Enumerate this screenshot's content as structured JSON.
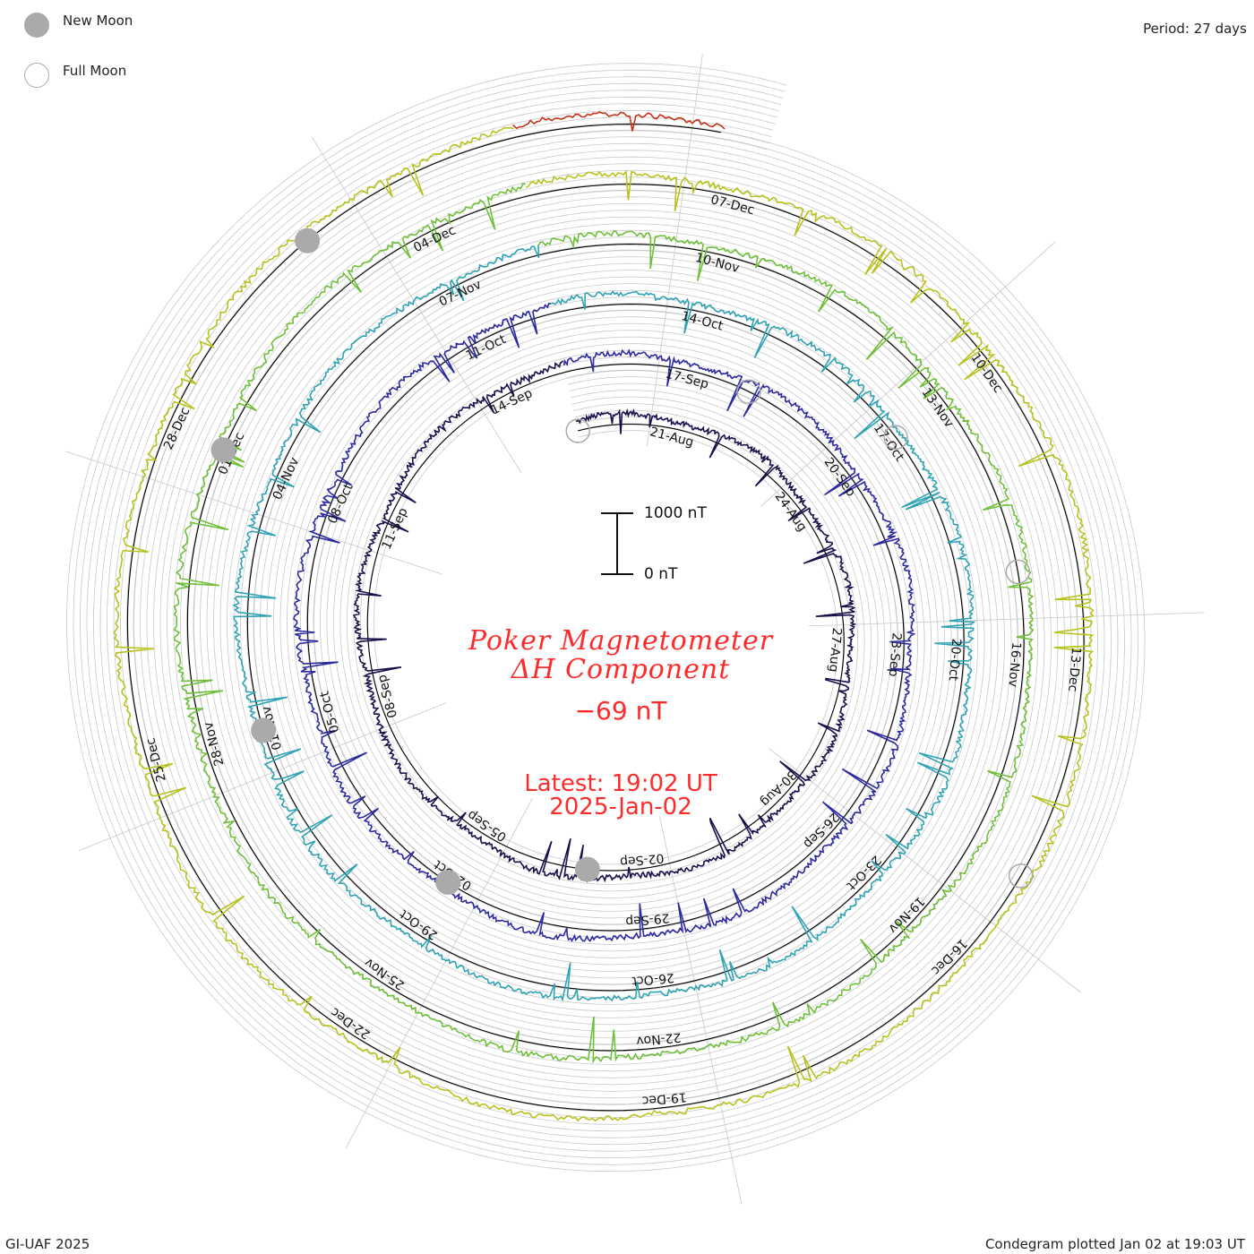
{
  "legend": {
    "new_moon": "New Moon",
    "full_moon": "Full Moon"
  },
  "period_label": "Period: 27 days",
  "footer": {
    "credit": "GI-UAF 2025",
    "plotted": "Condegram plotted Jan 02 at 19:03 UT"
  },
  "title": {
    "line1": "Poker Magnetometer",
    "line2": "ΔH Component"
  },
  "current_value": "−69 nT",
  "latest": {
    "time": "Latest: 19:02 UT",
    "date": "2025-Jan-02"
  },
  "scale": {
    "top": "1000 nT",
    "bottom": "0 nT"
  },
  "colors": {
    "grid": "#c8c8c8",
    "baseline": "#000000",
    "title": "#ff2a2a",
    "moon": "#aaaaaa"
  },
  "chart_data": {
    "type": "line",
    "plot_style": "spiral condegram (polar, one turn per 27-day period)",
    "title": "Poker Magnetometer ΔH Component",
    "period_days": 27,
    "start_date": "2024-08-19",
    "end_date": "2025-01-02",
    "y_unit": "nT",
    "scale_bar": [
      0,
      1000
    ],
    "turns": [
      {
        "turn": 1,
        "color": "#1a0f4a",
        "date_labels": [
          "21-Aug",
          "24-Aug",
          "27-Aug",
          "30-Aug",
          "02-Sep"
        ]
      },
      {
        "turn": 2,
        "color": "#2c2a9e",
        "date_labels": [
          "05-Sep",
          "08-Sep",
          "11-Sep",
          "14-Sep",
          "17-Sep",
          "20-Sep",
          "23-Sep",
          "26-Sep",
          "29-Sep"
        ]
      },
      {
        "turn": 3,
        "color": "#2fa3b3",
        "date_labels": [
          "02-Oct",
          "05-Oct",
          "08-Oct",
          "11-Oct",
          "14-Oct",
          "17-Oct",
          "20-Oct",
          "23-Oct",
          "26-Oct"
        ]
      },
      {
        "turn": 4,
        "color": "#6fbf3a",
        "date_labels": [
          "29-Oct",
          "01-Nov",
          "04-Nov",
          "07-Nov",
          "10-Nov",
          "13-Nov",
          "16-Nov",
          "19-Nov",
          "22-Nov"
        ]
      },
      {
        "turn": 5,
        "color": "#b8c21e",
        "date_labels": [
          "25-Nov",
          "28-Nov",
          "01-Dec",
          "04-Dec",
          "07-Dec",
          "10-Dec",
          "13-Dec",
          "16-Dec",
          "19-Dec"
        ]
      },
      {
        "turn": 6,
        "color": "#c4321a",
        "date_labels": [
          "22-Dec",
          "25-Dec",
          "28-Dec"
        ]
      }
    ],
    "new_moons": [
      "2024-09-03",
      "2024-10-02",
      "2024-11-01",
      "2024-12-01",
      "2024-12-30"
    ],
    "full_moons": [
      "2024-08-19",
      "2024-09-18",
      "2024-10-17",
      "2024-11-15",
      "2024-12-15"
    ],
    "latest_value": -69
  }
}
